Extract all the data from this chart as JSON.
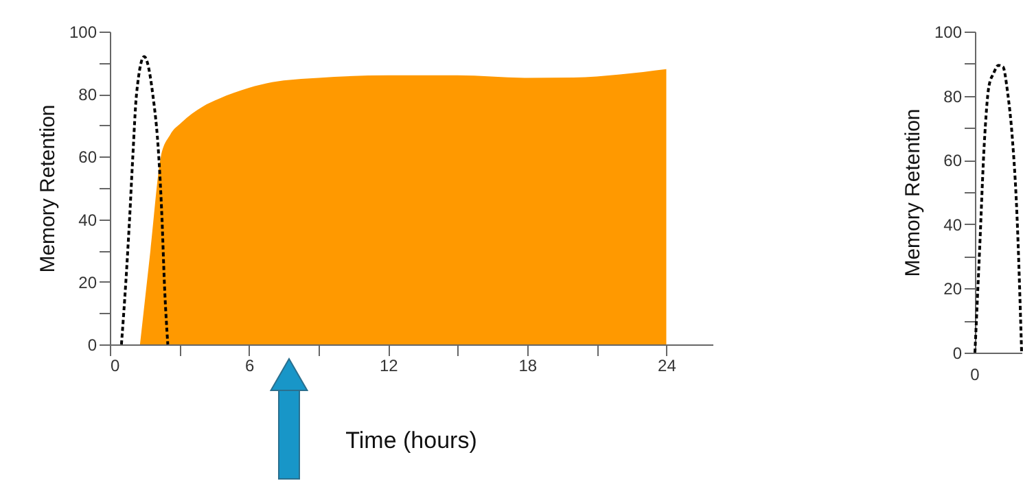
{
  "chart_data": [
    {
      "type": "area",
      "xlabel": "Time (hours)",
      "ylabel": "Memory Retention",
      "xlim": [
        0,
        26
      ],
      "xticks": [
        0,
        {
          "value": 3,
          "label": null
        },
        6,
        {
          "value": 9,
          "label": null
        },
        12,
        {
          "value": 15,
          "label": null
        },
        18,
        {
          "value": 21,
          "label": null
        },
        24
      ],
      "ylim": [
        0,
        100
      ],
      "yticks": [
        0,
        {
          "value": 10,
          "label": null
        },
        20,
        {
          "value": 30,
          "label": null
        },
        40,
        {
          "value": 50,
          "label": null
        },
        60,
        {
          "value": 70,
          "label": null
        },
        80,
        {
          "value": 90,
          "label": null
        },
        100
      ],
      "grid": false,
      "series": [
        {
          "color": "#ff9900",
          "x": [
            1.3,
            1.75,
            2.2,
            2.6,
            3.1,
            4,
            4.7,
            6,
            7,
            9,
            12,
            15,
            18,
            20,
            22,
            24
          ],
          "values": [
            0,
            30,
            60,
            67,
            71,
            76,
            78.5,
            82,
            83.8,
            85.2,
            86,
            86,
            85.2,
            85.3,
            86.3,
            88
          ]
        },
        {
          "type": "line",
          "color": "#000000",
          "line_style": "dashed",
          "x": [
            0.5,
            0.69,
            0.85,
            0.99,
            1.15,
            1.48,
            1.85,
            2.11,
            2.25,
            2.35,
            2.5
          ],
          "values": [
            0,
            20,
            40,
            60,
            80,
            92,
            80,
            60,
            40,
            20,
            0
          ]
        }
      ]
    },
    {
      "type": "line",
      "ylabel": "Memory Retention",
      "tick_labels": "y",
      "categories": [
        null,
        null,
        null,
        null,
        null,
        null,
        null,
        null,
        null,
        null,
        null
      ],
      "ylim": [
        0,
        100
      ],
      "yticks": [
        0,
        {
          "value": 10,
          "label": null
        },
        20,
        {
          "value": 30,
          "label": null
        },
        40,
        {
          "value": 50,
          "label": null
        },
        60,
        {
          "value": 70,
          "label": null
        },
        80,
        {
          "value": 90,
          "label": null
        },
        100
      ],
      "grid": false,
      "annotations": [
        "0"
      ],
      "series": [
        {
          "color": "#000000",
          "line_style": "dashed",
          "values": [
            0,
            32,
            65,
            83,
            87,
            89.5,
            89,
            81,
            67,
            43,
            0
          ]
        }
      ]
    }
  ]
}
